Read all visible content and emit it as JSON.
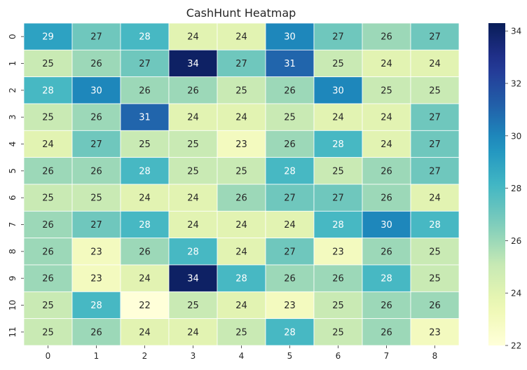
{
  "chart_data": {
    "type": "heatmap",
    "title": "CashHunt Heatmap",
    "x_tick_labels": [
      "0",
      "1",
      "2",
      "3",
      "4",
      "5",
      "6",
      "7",
      "8"
    ],
    "y_tick_labels": [
      "0",
      "1",
      "2",
      "3",
      "4",
      "5",
      "6",
      "7",
      "8",
      "9",
      "10",
      "11"
    ],
    "values": [
      [
        29,
        27,
        28,
        24,
        24,
        30,
        27,
        26,
        27
      ],
      [
        25,
        26,
        27,
        34,
        27,
        31,
        25,
        24,
        24
      ],
      [
        28,
        30,
        26,
        26,
        25,
        26,
        30,
        25,
        25
      ],
      [
        25,
        26,
        31,
        24,
        24,
        25,
        24,
        24,
        27
      ],
      [
        24,
        27,
        25,
        25,
        23,
        26,
        28,
        24,
        27
      ],
      [
        26,
        26,
        28,
        25,
        25,
        28,
        25,
        26,
        27
      ],
      [
        25,
        25,
        24,
        24,
        26,
        27,
        27,
        26,
        24
      ],
      [
        26,
        27,
        28,
        24,
        24,
        24,
        28,
        30,
        28
      ],
      [
        26,
        23,
        26,
        28,
        24,
        27,
        23,
        26,
        25
      ],
      [
        26,
        23,
        24,
        34,
        28,
        26,
        26,
        28,
        25
      ],
      [
        25,
        28,
        22,
        25,
        24,
        23,
        25,
        26,
        26
      ],
      [
        25,
        26,
        24,
        24,
        25,
        28,
        25,
        26,
        23
      ]
    ],
    "colorbar": {
      "min": 22,
      "max": 34.3,
      "tick_values": [
        22,
        24,
        26,
        28,
        30,
        32,
        34
      ]
    },
    "colormap": "YlGnBu",
    "annotations": true
  }
}
